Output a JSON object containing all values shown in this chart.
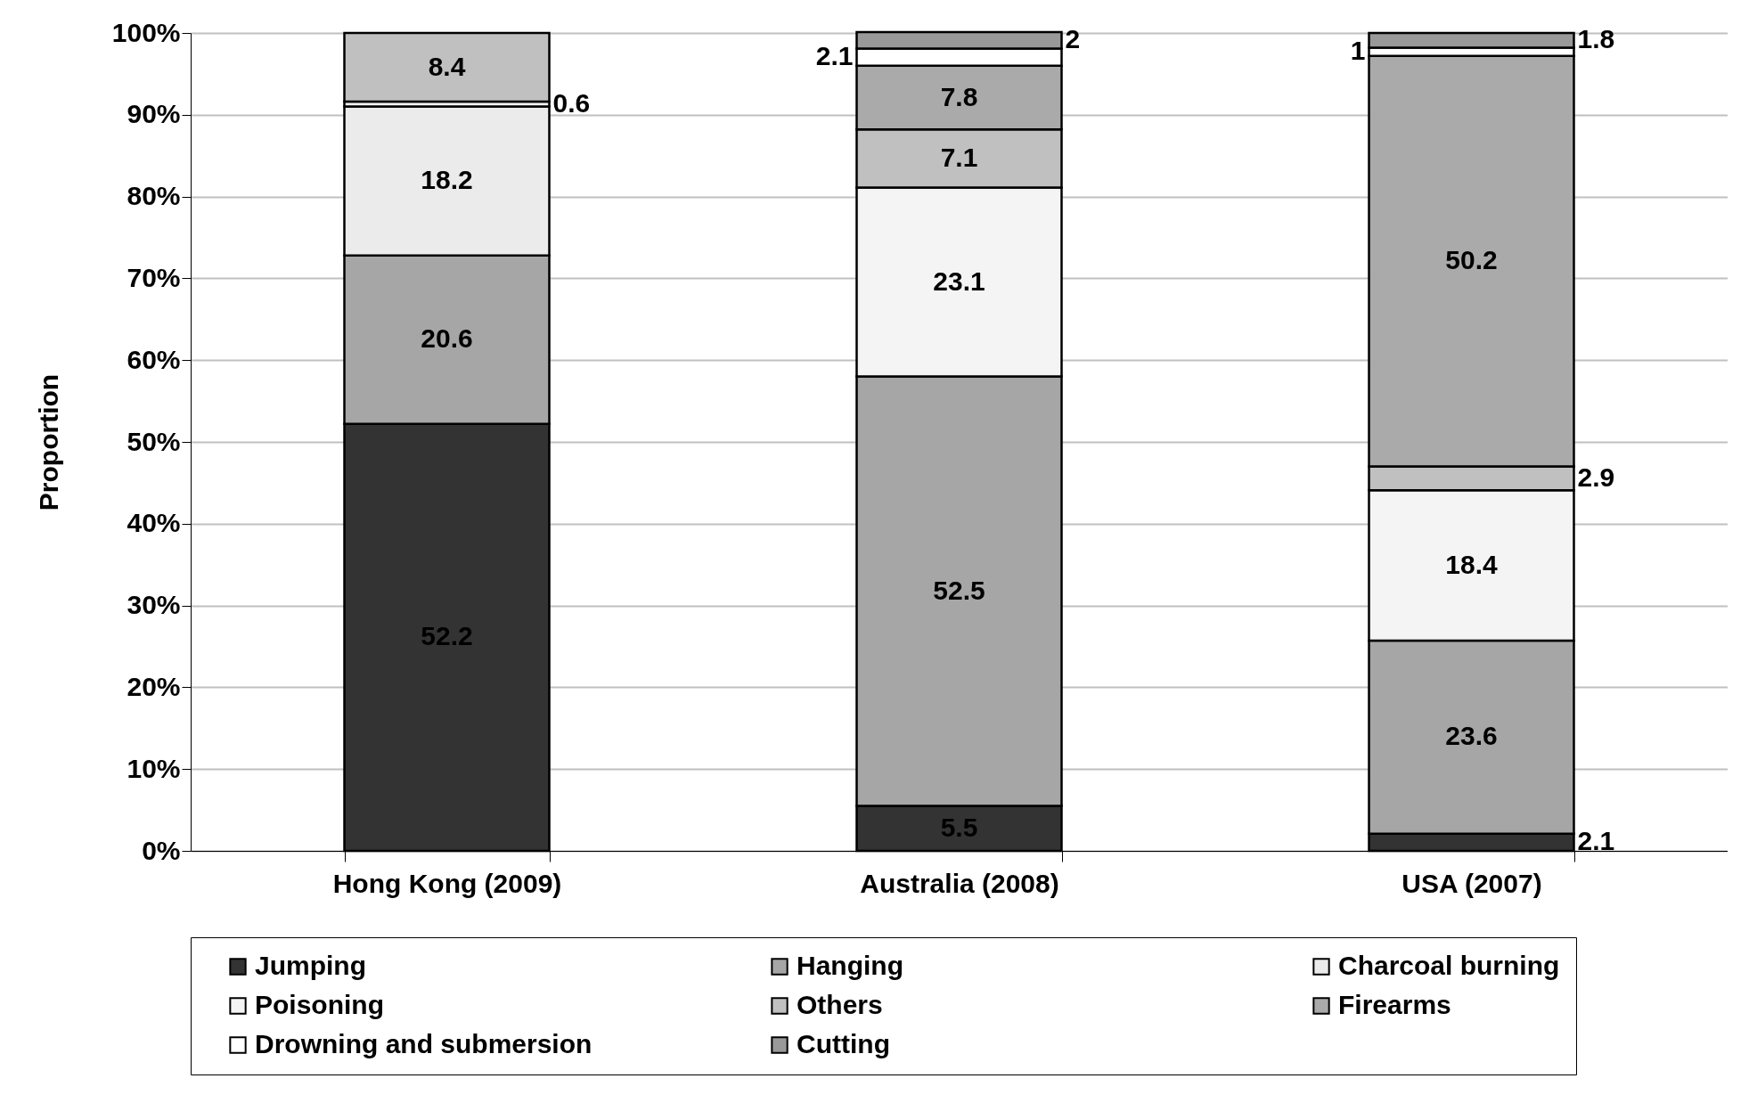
{
  "chart_data": {
    "type": "bar",
    "stacked": true,
    "ylabel": "Proportion",
    "categories": [
      "Hong Kong (2009)",
      "Australia (2008)",
      "USA (2007)"
    ],
    "series": [
      {
        "name": "Jumping",
        "color": "#333333",
        "values": [
          52.2,
          5.5,
          2.1
        ]
      },
      {
        "name": "Hanging",
        "color": "#a6a6a6",
        "values": [
          20.6,
          52.5,
          23.6
        ]
      },
      {
        "name": "Charcoal burning",
        "color": "#ebebeb",
        "values": [
          18.2,
          null,
          null
        ]
      },
      {
        "name": "Poisoning",
        "color": "#f4f4f4",
        "values": [
          0.6,
          23.1,
          18.4
        ]
      },
      {
        "name": "Others",
        "color": "#c0c0c0",
        "values": [
          8.4,
          7.1,
          2.9
        ]
      },
      {
        "name": "Firearms",
        "color": "#aaaaaa",
        "values": [
          null,
          7.8,
          50.2
        ]
      },
      {
        "name": "Drowning and submersion",
        "color": "#ffffff",
        "values": [
          null,
          2.1,
          1
        ]
      },
      {
        "name": "Cutting",
        "color": "#999999",
        "values": [
          null,
          2,
          1.8
        ]
      }
    ],
    "ylim": [
      0,
      100
    ],
    "yticks": [
      {
        "value": 0,
        "label": "0%"
      },
      {
        "value": 10,
        "label": "10%"
      },
      {
        "value": 20,
        "label": "20%"
      },
      {
        "value": 30,
        "label": "30%"
      },
      {
        "value": 40,
        "label": "40%"
      },
      {
        "value": 50,
        "label": "50%"
      },
      {
        "value": 60,
        "label": "60%"
      },
      {
        "value": 70,
        "label": "70%"
      },
      {
        "value": 80,
        "label": "80%"
      },
      {
        "value": 90,
        "label": "90%"
      },
      {
        "value": 100,
        "label": "100%"
      }
    ],
    "grid": "y",
    "legend": "bottom",
    "data_labels": true
  }
}
